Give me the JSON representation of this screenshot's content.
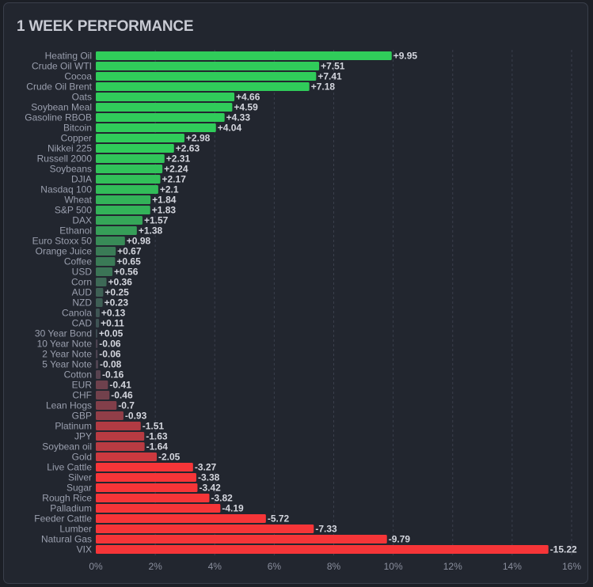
{
  "chart_data": {
    "type": "bar",
    "orientation": "horizontal",
    "title": "1 WEEK PERFORMANCE",
    "xlabel": "",
    "ylabel": "",
    "xlim": [
      0,
      16
    ],
    "x_scale": "absolute value of percent change",
    "ticks": [
      "0%",
      "2%",
      "4%",
      "6%",
      "8%",
      "10%",
      "12%",
      "14%",
      "16%"
    ],
    "tick_values": [
      0,
      2,
      4,
      6,
      8,
      10,
      12,
      14,
      16
    ],
    "grid": true,
    "categories": [
      "Heating Oil",
      "Crude Oil WTI",
      "Cocoa",
      "Crude Oil Brent",
      "Oats",
      "Soybean Meal",
      "Gasoline RBOB",
      "Bitcoin",
      "Copper",
      "Nikkei 225",
      "Russell 2000",
      "Soybeans",
      "DJIA",
      "Nasdaq 100",
      "Wheat",
      "S&P 500",
      "DAX",
      "Ethanol",
      "Euro Stoxx 50",
      "Orange Juice",
      "Coffee",
      "USD",
      "Corn",
      "AUD",
      "NZD",
      "Canola",
      "CAD",
      "30 Year Bond",
      "10 Year Note",
      "2 Year Note",
      "5 Year Note",
      "Cotton",
      "EUR",
      "CHF",
      "Lean Hogs",
      "GBP",
      "Platinum",
      "JPY",
      "Soybean oil",
      "Gold",
      "Live Cattle",
      "Silver",
      "Sugar",
      "Rough Rice",
      "Palladium",
      "Feeder Cattle",
      "Lumber",
      "Natural Gas",
      "VIX"
    ],
    "values": [
      9.95,
      7.51,
      7.41,
      7.18,
      4.66,
      4.59,
      4.33,
      4.04,
      2.98,
      2.63,
      2.31,
      2.24,
      2.17,
      2.1,
      1.84,
      1.83,
      1.57,
      1.38,
      0.98,
      0.67,
      0.65,
      0.56,
      0.36,
      0.25,
      0.23,
      0.13,
      0.11,
      0.05,
      -0.06,
      -0.06,
      -0.08,
      -0.16,
      -0.41,
      -0.46,
      -0.7,
      -0.93,
      -1.51,
      -1.63,
      -1.64,
      -2.05,
      -3.27,
      -3.38,
      -3.42,
      -3.82,
      -4.19,
      -5.72,
      -7.33,
      -9.79,
      -15.22
    ],
    "value_labels": [
      "+9.95",
      "+7.51",
      "+7.41",
      "+7.18",
      "+4.66",
      "+4.59",
      "+4.33",
      "+4.04",
      "+2.98",
      "+2.63",
      "+2.31",
      "+2.24",
      "+2.17",
      "+2.1",
      "+1.84",
      "+1.83",
      "+1.57",
      "+1.38",
      "+0.98",
      "+0.67",
      "+0.65",
      "+0.56",
      "+0.36",
      "+0.25",
      "+0.23",
      "+0.13",
      "+0.11",
      "+0.05",
      "-0.06",
      "-0.06",
      "-0.08",
      "-0.16",
      "-0.41",
      "-0.46",
      "-0.7",
      "-0.93",
      "-1.51",
      "-1.63",
      "-1.64",
      "-2.05",
      "-3.27",
      "-3.38",
      "-3.42",
      "-3.82",
      "-4.19",
      "-5.72",
      "-7.33",
      "-9.79",
      "-15.22"
    ],
    "colors": {
      "positive": "#30cc5a",
      "neutral": "#414554",
      "negative": "#f63538"
    }
  }
}
